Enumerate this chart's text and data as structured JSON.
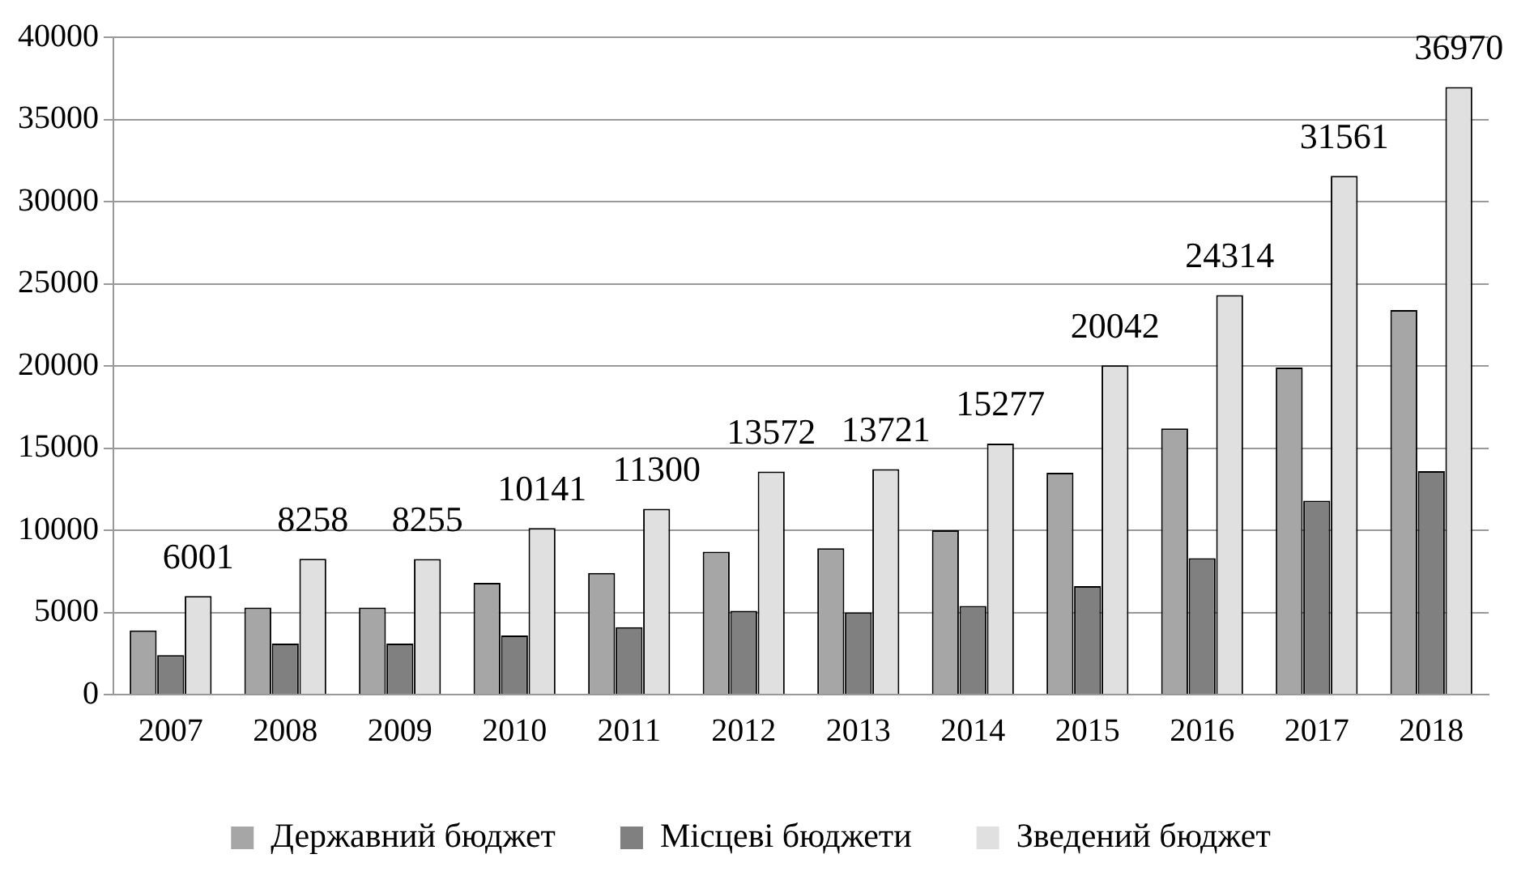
{
  "chart_data": {
    "type": "bar",
    "categories": [
      "2007",
      "2008",
      "2009",
      "2010",
      "2011",
      "2012",
      "2013",
      "2014",
      "2015",
      "2016",
      "2017",
      "2018"
    ],
    "series": [
      {
        "name": "Державний бюджет",
        "color": "#a6a6a6",
        "values": [
          3900,
          5300,
          5300,
          6800,
          7400,
          8700,
          8900,
          10000,
          13500,
          16200,
          19900,
          23400
        ]
      },
      {
        "name": "Місцеві бюджети",
        "color": "#808080",
        "values": [
          2400,
          3100,
          3100,
          3600,
          4100,
          5100,
          5000,
          5400,
          6600,
          8300,
          11800,
          13600
        ]
      },
      {
        "name": "Зведений бюджет",
        "color": "#e0e0e0",
        "values": [
          6001,
          8258,
          8255,
          10141,
          11300,
          13572,
          13721,
          15277,
          20042,
          24314,
          31561,
          36970
        ],
        "value_labels": [
          "6001",
          "8258",
          "8255",
          "10141",
          "11300",
          "13572",
          "13721",
          "15277",
          "20042",
          "24314",
          "31561",
          "36970"
        ]
      }
    ],
    "ylim": [
      0,
      40000
    ],
    "yticks": [
      0,
      5000,
      10000,
      15000,
      20000,
      25000,
      30000,
      35000,
      40000
    ],
    "grid": "y",
    "legend": "bottom"
  }
}
